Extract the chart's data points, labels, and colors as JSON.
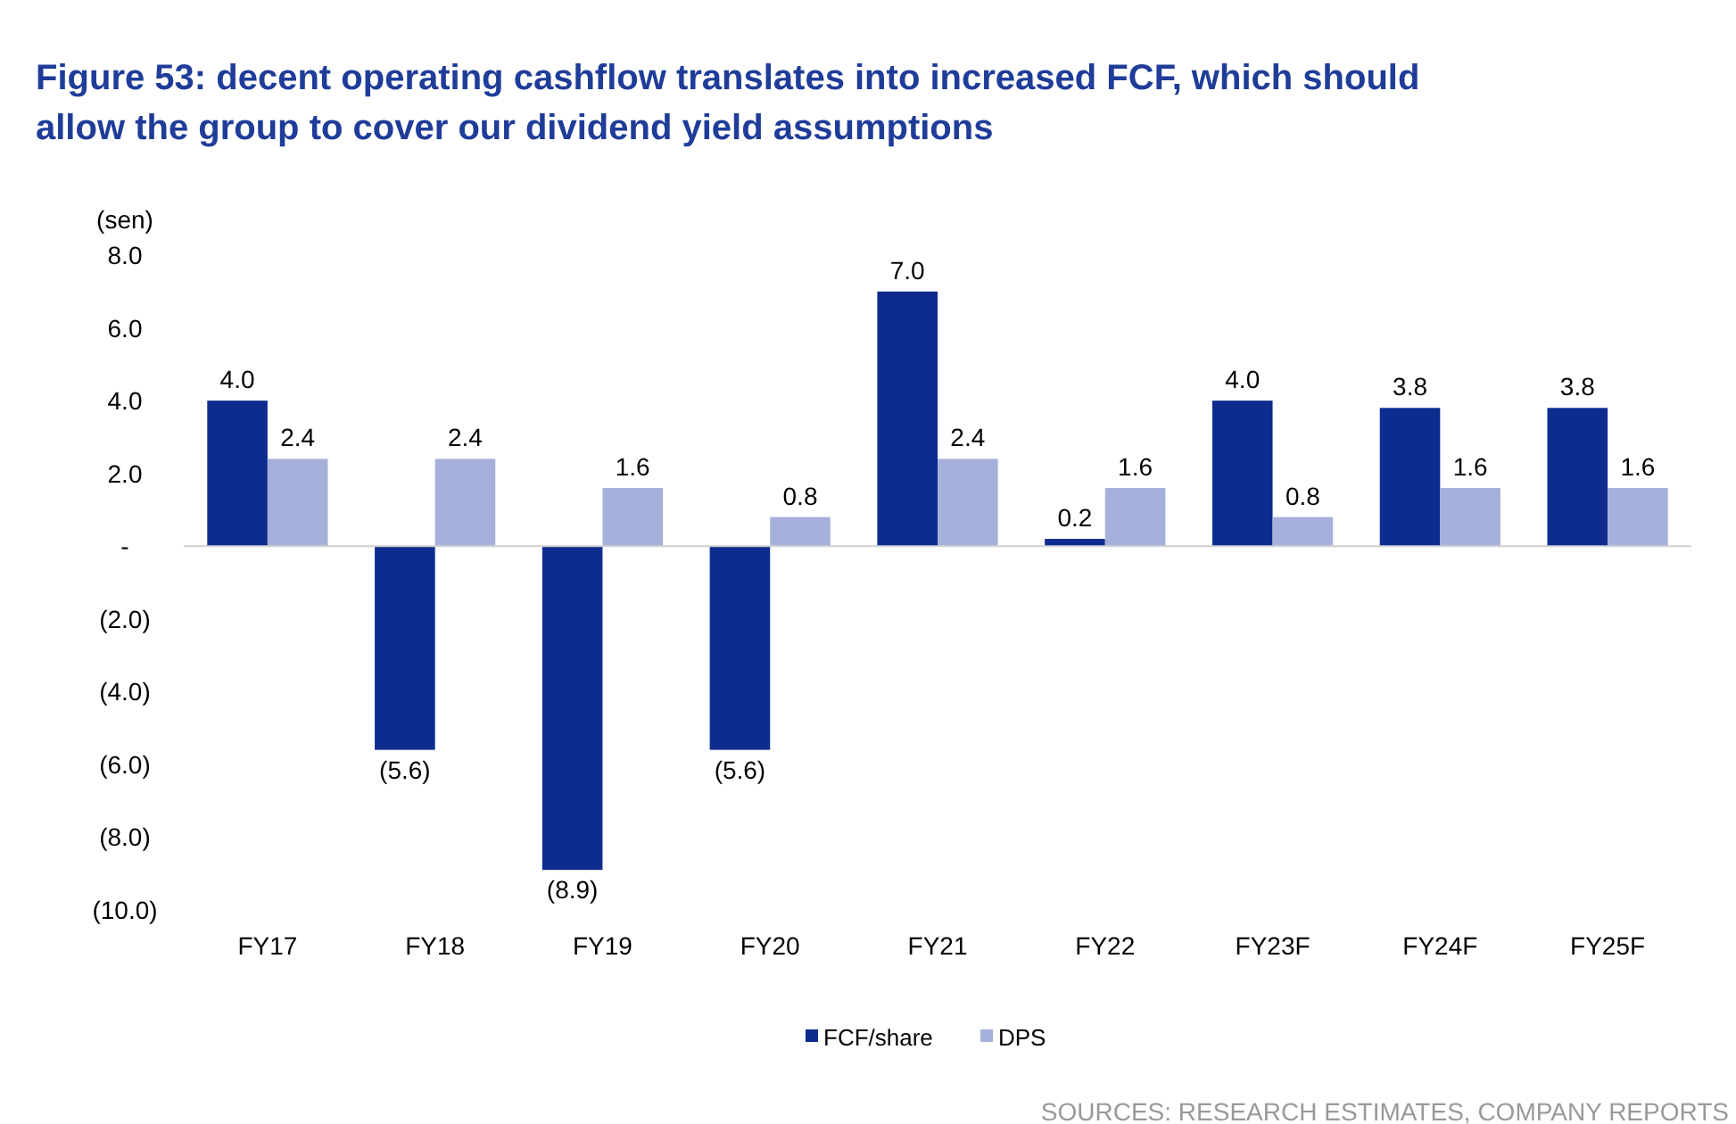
{
  "chart_data": {
    "type": "bar",
    "title": "Figure 53: decent operating cashflow translates into increased FCF, which should allow the group to cover our dividend yield assumptions",
    "ylabel": "(sen)",
    "categories": [
      "FY17",
      "FY18",
      "FY19",
      "FY20",
      "FY21",
      "FY22",
      "FY23F",
      "FY24F",
      "FY25F"
    ],
    "series": [
      {
        "name": "FCF/share",
        "color": "#0e2c8e",
        "values": [
          4.0,
          -5.6,
          -8.9,
          -5.6,
          7.0,
          0.2,
          4.0,
          3.8,
          3.8
        ],
        "value_labels": [
          "4.0",
          "(5.6)",
          "(8.9)",
          "(5.6)",
          "7.0",
          "0.2",
          "4.0",
          "3.8",
          "3.8"
        ]
      },
      {
        "name": "DPS",
        "color": "#a6b1db",
        "values": [
          2.4,
          2.4,
          1.6,
          0.8,
          2.4,
          1.6,
          0.8,
          1.6,
          1.6
        ],
        "value_labels": [
          "2.4",
          "2.4",
          "1.6",
          "0.8",
          "2.4",
          "1.6",
          "0.8",
          "1.6",
          "1.6"
        ]
      }
    ],
    "ylim": [
      -10,
      8
    ],
    "yticks": [
      {
        "value": 8,
        "label": "8.0"
      },
      {
        "value": 6,
        "label": "6.0"
      },
      {
        "value": 4,
        "label": "4.0"
      },
      {
        "value": 2,
        "label": "2.0"
      },
      {
        "value": 0,
        "label": "-"
      },
      {
        "value": -2,
        "label": "(2.0)"
      },
      {
        "value": -4,
        "label": "(4.0)"
      },
      {
        "value": -6,
        "label": "(6.0)"
      },
      {
        "value": -8,
        "label": "(8.0)"
      },
      {
        "value": -10,
        "label": "(10.0)"
      }
    ],
    "grid": false,
    "legend": "bottom",
    "ref_lines": [
      {
        "axis": "y",
        "value": 0,
        "color": "#d0d0d0"
      }
    ],
    "annotations": [
      "SOURCES: RESEARCH ESTIMATES, COMPANY REPORTS"
    ]
  }
}
